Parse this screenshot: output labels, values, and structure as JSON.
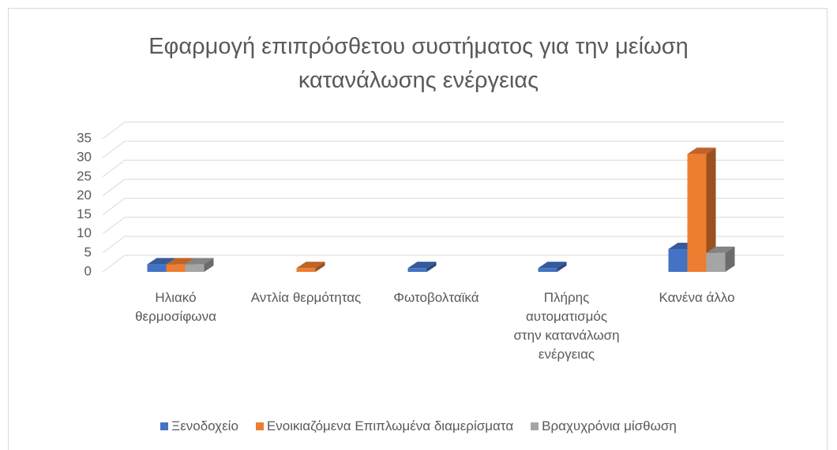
{
  "chart_data": {
    "type": "bar3d",
    "title": "Εφαρμογή επιπρόσθετου συστήματος για την μείωση κατανάλωσης ενέργειας",
    "categories": [
      "Ηλιακό θερμοσίφωνα",
      "Αντλία θερμότητας",
      "Φωτοβολταϊκά",
      "Πλήρης αυτοματισμός στην κατανάλωση ενέργειας",
      "Κανένα άλλο"
    ],
    "series": [
      {
        "name": "Ξενοδοχείο",
        "color": "#4472c4",
        "values": [
          2,
          0,
          1,
          1,
          6
        ]
      },
      {
        "name": "Ενοικιαζόμενα Επιπλωμένα διαμερίσματα",
        "color": "#ed7d31",
        "values": [
          2,
          1,
          0,
          0,
          31
        ]
      },
      {
        "name": "Βραχυχρόνια μίσθωση",
        "color": "#a5a5a5",
        "values": [
          2,
          0,
          0,
          0,
          5
        ]
      }
    ],
    "ylim": [
      0,
      35
    ],
    "yticks": [
      0,
      5,
      10,
      15,
      20,
      25,
      30,
      35
    ],
    "grid": true,
    "legend": "bottom"
  }
}
